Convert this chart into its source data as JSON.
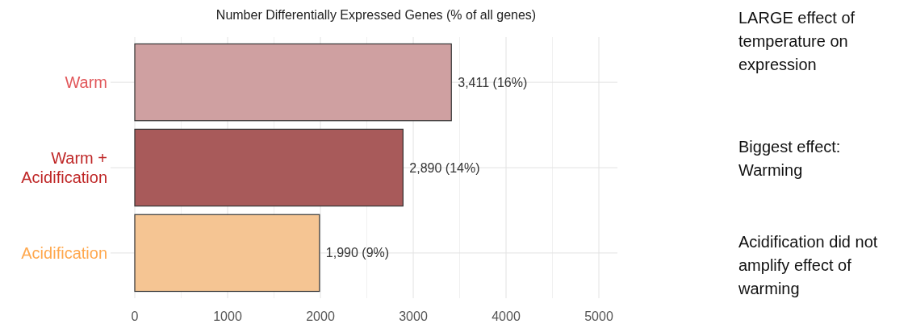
{
  "chart_data": {
    "type": "bar",
    "orientation": "horizontal",
    "title": "Number Differentially Expressed Genes (% of all genes)",
    "categories": [
      "Warm",
      "Warm + Acidification",
      "Acidification"
    ],
    "values": [
      3411,
      2890,
      1990
    ],
    "colors": [
      "#cfa0a1",
      "#a85a5a",
      "#f5c593"
    ],
    "value_labels": [
      "3,411 (16%)",
      "2,890 (14%)",
      "1,990 (9%)"
    ],
    "xlim": [
      0,
      5200
    ],
    "xticks": [
      0,
      1000,
      2000,
      3000,
      4000,
      5000
    ],
    "grid": true,
    "annotations": [
      "LARGE effect of temperature on expression",
      "Biggest effect: Warming",
      "Acidification did not amplify effect of warming"
    ]
  }
}
